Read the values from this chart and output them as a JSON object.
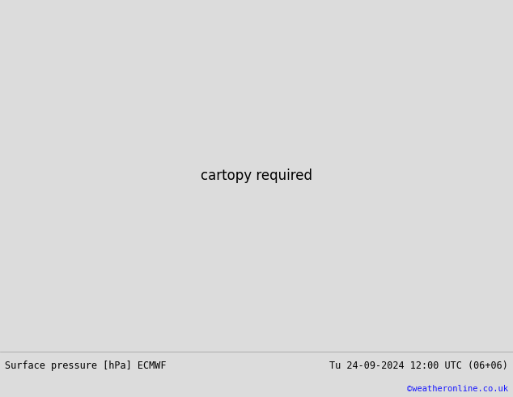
{
  "title_left": "Surface pressure [hPa] ECMWF",
  "title_right": "Tu 24-09-2024 12:00 UTC (06+06)",
  "credit": "©weatheronline.co.uk",
  "bg_ocean": "#c8c8c8",
  "bg_land": "#aad4a0",
  "bg_land_dark": "#98c890",
  "coast_color": "#888888",
  "bottom_bar_color": "#dcdcdc",
  "fig_width": 6.34,
  "fig_height": 4.9,
  "dpi": 100,
  "lon_min": -60,
  "lon_max": 60,
  "lat_min": 25,
  "lat_max": 75
}
